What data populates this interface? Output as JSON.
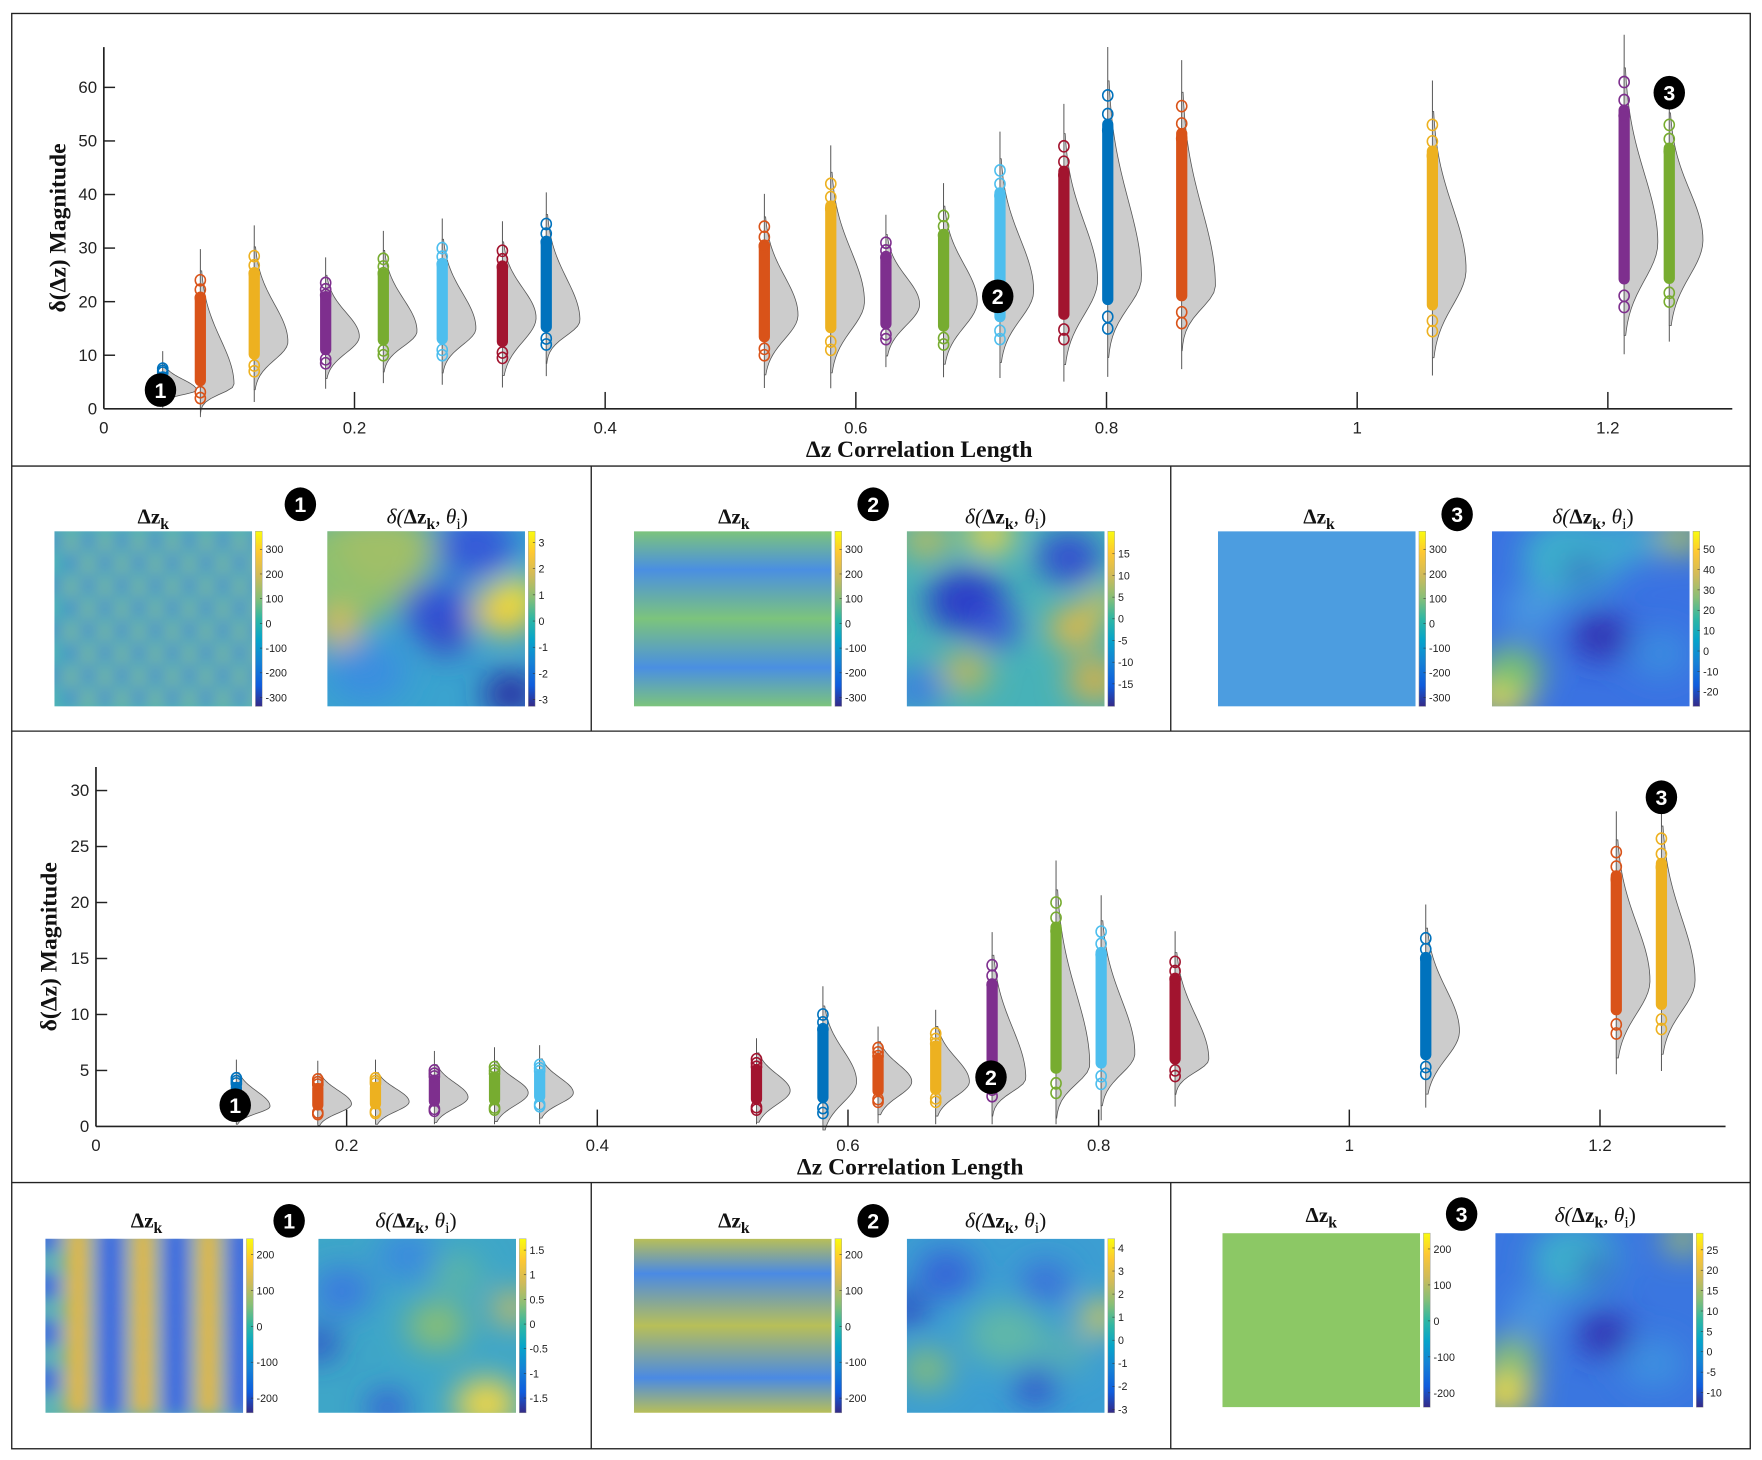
{
  "badges": [
    "1",
    "2",
    "3"
  ],
  "panel_titles": {
    "dz": {
      "main": "Δz",
      "sub": "k"
    },
    "delta": {
      "pre": "δ(",
      "main": "Δz",
      "sub": "k",
      "mid": ", θ",
      "sub2": "i",
      "post": ")"
    }
  },
  "colors": {
    "blue": "#0072BD",
    "orange": "#D95319",
    "yellow": "#EDB120",
    "purple": "#7E2F8E",
    "green": "#77AC30",
    "lightblue": "#4DBEEE",
    "darkred": "#A2142F",
    "violin_fill": "#cccccc",
    "colormap": "parula"
  },
  "chart_data": [
    {
      "type": "violin",
      "xlabel": "Δz Correlation Length",
      "ylabel": "δ(Δz) Magnitude",
      "xlim": [
        0,
        1.3
      ],
      "ylim": [
        0,
        67
      ],
      "xticks": [
        "0",
        "0.2",
        "0.4",
        "0.6",
        "0.8",
        "1",
        "1.2"
      ],
      "xtick_values": [
        0,
        0.2,
        0.4,
        0.6,
        0.8,
        1,
        1.2
      ],
      "yticks": [
        "0",
        "10",
        "20",
        "30",
        "40",
        "50",
        "60"
      ],
      "ytick_values": [
        0,
        10,
        20,
        30,
        40,
        50,
        60
      ],
      "grid": false,
      "annotations": [
        {
          "label": "1",
          "x": 0.047,
          "y": 3.5
        },
        {
          "label": "2",
          "x": 0.715,
          "y": 21
        },
        {
          "label": "3",
          "x": 1.249,
          "y": 59
        }
      ],
      "violins": [
        {
          "x": 0.047,
          "min": 2.5,
          "max": 7.5,
          "peak": 3.5,
          "color": "blue"
        },
        {
          "x": 0.077,
          "min": 2,
          "max": 24,
          "peak": 4.5,
          "color": "orange"
        },
        {
          "x": 0.12,
          "min": 7,
          "max": 28.5,
          "peak": 12.5,
          "color": "yellow"
        },
        {
          "x": 0.177,
          "min": 8.5,
          "max": 23.5,
          "peak": 13.5,
          "color": "purple"
        },
        {
          "x": 0.223,
          "min": 10,
          "max": 28,
          "peak": 14.5,
          "color": "green"
        },
        {
          "x": 0.27,
          "min": 10,
          "max": 30,
          "peak": 15,
          "color": "lightblue"
        },
        {
          "x": 0.318,
          "min": 9.5,
          "max": 29.5,
          "peak": 17,
          "color": "darkred"
        },
        {
          "x": 0.353,
          "min": 12,
          "max": 34.5,
          "peak": 16.5,
          "color": "blue"
        },
        {
          "x": 0.527,
          "min": 10,
          "max": 34,
          "peak": 17.5,
          "color": "orange"
        },
        {
          "x": 0.58,
          "min": 11,
          "max": 42,
          "peak": 20,
          "color": "yellow"
        },
        {
          "x": 0.624,
          "min": 13,
          "max": 31,
          "peak": 19.5,
          "color": "purple"
        },
        {
          "x": 0.67,
          "min": 12,
          "max": 36,
          "peak": 20,
          "color": "green"
        },
        {
          "x": 0.715,
          "min": 13,
          "max": 44.5,
          "peak": 22,
          "color": "lightblue"
        },
        {
          "x": 0.766,
          "min": 13,
          "max": 49,
          "peak": 24,
          "color": "darkred"
        },
        {
          "x": 0.801,
          "min": 15,
          "max": 58.5,
          "peak": 24.5,
          "color": "blue"
        },
        {
          "x": 0.86,
          "min": 16,
          "max": 56.5,
          "peak": 23,
          "color": "orange"
        },
        {
          "x": 1.06,
          "min": 14.5,
          "max": 53,
          "peak": 26,
          "color": "yellow"
        },
        {
          "x": 1.213,
          "min": 19,
          "max": 61,
          "peak": 31,
          "color": "purple"
        },
        {
          "x": 1.249,
          "min": 20,
          "max": 53,
          "peak": 31.5,
          "color": "green"
        }
      ]
    },
    {
      "type": "violin",
      "xlabel": "Δz Correlation Length",
      "ylabel": "δ(Δz) Magnitude",
      "xlim": [
        0,
        1.3
      ],
      "ylim": [
        0,
        32
      ],
      "xticks": [
        "0",
        "0.2",
        "0.4",
        "0.6",
        "0.8",
        "1",
        "1.2"
      ],
      "xtick_values": [
        0,
        0.2,
        0.4,
        0.6,
        0.8,
        1,
        1.2
      ],
      "yticks": [
        "0",
        "5",
        "10",
        "15",
        "20",
        "25",
        "30"
      ],
      "ytick_values": [
        0,
        5,
        10,
        15,
        20,
        25,
        30
      ],
      "grid": false,
      "annotations": [
        {
          "label": "1",
          "x": 0.112,
          "y": 1.9
        },
        {
          "label": "2",
          "x": 0.715,
          "y": 4.4
        },
        {
          "label": "3",
          "x": 1.249,
          "y": 29.4
        }
      ],
      "violins": [
        {
          "x": 0.112,
          "min": 1.2,
          "max": 4.3,
          "peak": 1.8,
          "color": "blue"
        },
        {
          "x": 0.177,
          "min": 1.1,
          "max": 4.2,
          "peak": 2,
          "color": "orange"
        },
        {
          "x": 0.223,
          "min": 1.2,
          "max": 4.3,
          "peak": 2.2,
          "color": "yellow"
        },
        {
          "x": 0.27,
          "min": 1.4,
          "max": 5,
          "peak": 2.6,
          "color": "purple"
        },
        {
          "x": 0.318,
          "min": 1.5,
          "max": 5.3,
          "peak": 3,
          "color": "green"
        },
        {
          "x": 0.354,
          "min": 1.8,
          "max": 5.5,
          "peak": 3,
          "color": "lightblue"
        },
        {
          "x": 0.527,
          "min": 1.5,
          "max": 6,
          "peak": 3.2,
          "color": "darkred"
        },
        {
          "x": 0.58,
          "min": 1.2,
          "max": 10,
          "peak": 4,
          "color": "blue"
        },
        {
          "x": 0.624,
          "min": 2.2,
          "max": 7,
          "peak": 4,
          "color": "orange"
        },
        {
          "x": 0.67,
          "min": 2.2,
          "max": 8.3,
          "peak": 4,
          "color": "yellow"
        },
        {
          "x": 0.715,
          "min": 2.7,
          "max": 14.4,
          "peak": 4.3,
          "color": "purple"
        },
        {
          "x": 0.766,
          "min": 3,
          "max": 20,
          "peak": 5.5,
          "color": "green"
        },
        {
          "x": 0.802,
          "min": 3.8,
          "max": 17.4,
          "peak": 6.5,
          "color": "lightblue"
        },
        {
          "x": 0.861,
          "min": 4.5,
          "max": 14.7,
          "peak": 6,
          "color": "darkred"
        },
        {
          "x": 1.061,
          "min": 4.7,
          "max": 16.8,
          "peak": 8.5,
          "color": "blue"
        },
        {
          "x": 1.213,
          "min": 8.3,
          "max": 24.5,
          "peak": 13,
          "color": "orange"
        },
        {
          "x": 1.249,
          "min": 8.7,
          "max": 25.7,
          "peak": 13,
          "color": "yellow"
        }
      ]
    }
  ],
  "heatmaps": [
    {
      "row": 1,
      "panel": 1,
      "kind": "dz",
      "pattern": "hexagonal",
      "clim": [
        -336,
        373
      ],
      "ticks": [
        "300",
        "200",
        "100",
        "0",
        "-100",
        "-200",
        "-300"
      ],
      "tick_values": [
        300,
        200,
        100,
        0,
        -100,
        -200,
        -300
      ]
    },
    {
      "row": 1,
      "panel": 1,
      "kind": "delta",
      "clim": [
        -3.26,
        3.43
      ],
      "ticks": [
        "3",
        "2",
        "1",
        "0",
        "-1",
        "-2",
        "-3"
      ],
      "tick_values": [
        3,
        2,
        1,
        0,
        -1,
        -2,
        -3
      ]
    },
    {
      "row": 1,
      "panel": 2,
      "kind": "dz",
      "pattern": "stripes",
      "clim": [
        -336,
        373
      ],
      "ticks": [
        "300",
        "200",
        "100",
        "0",
        "-100",
        "-200",
        "-300"
      ],
      "tick_values": [
        300,
        200,
        100,
        0,
        -100,
        -200,
        -300
      ]
    },
    {
      "row": 1,
      "panel": 2,
      "kind": "delta",
      "clim": [
        -20.2,
        20.2
      ],
      "ticks": [
        "15",
        "10",
        "5",
        "0",
        "-5",
        "-10",
        "-15"
      ],
      "tick_values": [
        15,
        10,
        5,
        0,
        -5,
        -10,
        -15
      ]
    },
    {
      "row": 1,
      "panel": 3,
      "kind": "dz",
      "pattern": "uniform",
      "clim": [
        -336,
        373
      ],
      "ticks": [
        "300",
        "200",
        "100",
        "0",
        "-100",
        "-200",
        "-300"
      ],
      "tick_values": [
        300,
        200,
        100,
        0,
        -100,
        -200,
        -300
      ]
    },
    {
      "row": 1,
      "panel": 3,
      "kind": "delta",
      "clim": [
        -27.2,
        58.8
      ],
      "ticks": [
        "50",
        "40",
        "30",
        "20",
        "10",
        "0",
        "-10",
        "-20"
      ],
      "tick_values": [
        50,
        40,
        30,
        20,
        10,
        0,
        -10,
        -20
      ]
    },
    {
      "row": 2,
      "panel": 1,
      "kind": "dz",
      "pattern": "checker",
      "clim": [
        -241,
        244
      ],
      "ticks": [
        "200",
        "100",
        "0",
        "-100",
        "-200"
      ],
      "tick_values": [
        200,
        100,
        0,
        -100,
        -200
      ]
    },
    {
      "row": 2,
      "panel": 1,
      "kind": "delta",
      "clim": [
        -1.8,
        1.73
      ],
      "ticks": [
        "1.5",
        "1",
        "0.5",
        "0",
        "-0.5",
        "-1",
        "-1.5"
      ],
      "tick_values": [
        1.5,
        1,
        0.5,
        0,
        -0.5,
        -1,
        -1.5
      ]
    },
    {
      "row": 2,
      "panel": 2,
      "kind": "dz",
      "pattern": "stripes",
      "clim": [
        -241,
        244
      ],
      "ticks": [
        "200",
        "100",
        "0",
        "-100",
        "-200"
      ],
      "tick_values": [
        200,
        100,
        0,
        -100,
        -200
      ]
    },
    {
      "row": 2,
      "panel": 2,
      "kind": "delta",
      "clim": [
        -3.15,
        4.4
      ],
      "ticks": [
        "4",
        "3",
        "2",
        "1",
        "0",
        "-1",
        "-2",
        "-3"
      ],
      "tick_values": [
        4,
        3,
        2,
        1,
        0,
        -1,
        -2,
        -3
      ]
    },
    {
      "row": 2,
      "panel": 3,
      "kind": "dz",
      "pattern": "uniform",
      "clim": [
        -240,
        244
      ],
      "ticks": [
        "200",
        "100",
        "0",
        "-100",
        "-200"
      ],
      "tick_values": [
        200,
        100,
        0,
        -100,
        -200
      ]
    },
    {
      "row": 2,
      "panel": 3,
      "kind": "delta",
      "clim": [
        -13.6,
        29.1
      ],
      "ticks": [
        "25",
        "20",
        "15",
        "10",
        "5",
        "0",
        "-5",
        "-10"
      ],
      "tick_values": [
        25,
        20,
        15,
        10,
        5,
        0,
        -5,
        -10
      ]
    }
  ]
}
